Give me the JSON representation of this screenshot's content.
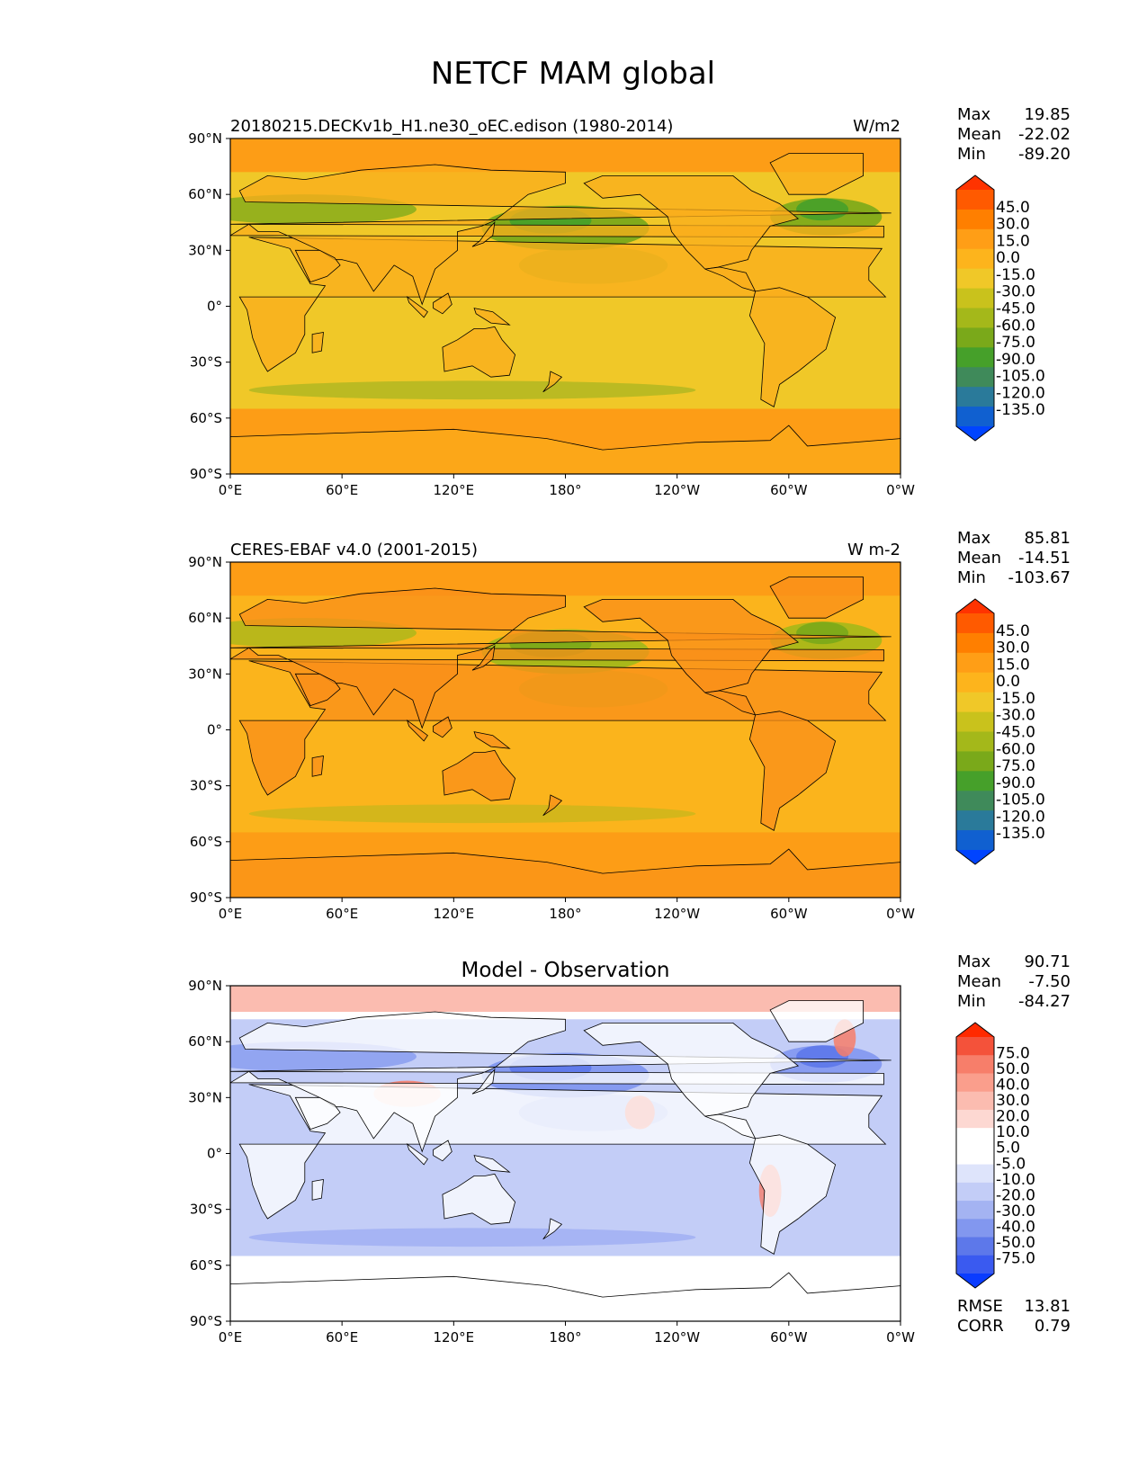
{
  "title": "NETCF MAM global",
  "lat_ticks": [
    "90°N",
    "60°N",
    "30°N",
    "0°",
    "30°S",
    "60°S",
    "90°S"
  ],
  "lon_ticks": [
    "0°E",
    "60°E",
    "120°E",
    "180°",
    "120°W",
    "60°W",
    "0°W"
  ],
  "panels": [
    {
      "left_title": "20180215.DECKv1b_H1.ne30_oEC.edison (1980-2014)",
      "center_title": "",
      "units": "W/m2",
      "stats": [
        {
          "label": "Max",
          "value": "19.85"
        },
        {
          "label": "Mean",
          "value": "-22.02"
        },
        {
          "label": "Min",
          "value": "-89.20"
        }
      ],
      "colorbar": {
        "levels": [
          "45.0",
          "30.0",
          "15.0",
          "0.0",
          "-15.0",
          "-30.0",
          "-45.0",
          "-60.0",
          "-75.0",
          "-90.0",
          "-105.0",
          "-120.0",
          "-135.0"
        ],
        "colors": [
          "#ff3300",
          "#ff5a00",
          "#ff7f00",
          "#ff9e16",
          "#fdb41c",
          "#f0c828",
          "#c9c21c",
          "#a4b81a",
          "#7aa91a",
          "#46a02a",
          "#3f8a5a",
          "#2a7a9a",
          "#1060d0",
          "#0044ff"
        ]
      },
      "field": {
        "base": "#f0c828",
        "polar": "#fd9d16",
        "land": "#fbae1c",
        "wet": "#7aa91a",
        "wet_strong": "#46a02a"
      }
    },
    {
      "left_title": "CERES-EBAF v4.0 (2001-2015)",
      "center_title": "",
      "units": "W m-2",
      "stats": [
        {
          "label": "Max",
          "value": "85.81"
        },
        {
          "label": "Mean",
          "value": "-14.51"
        },
        {
          "label": "Min",
          "value": "-103.67"
        }
      ],
      "colorbar": {
        "levels": [
          "45.0",
          "30.0",
          "15.0",
          "0.0",
          "-15.0",
          "-30.0",
          "-45.0",
          "-60.0",
          "-75.0",
          "-90.0",
          "-105.0",
          "-120.0",
          "-135.0"
        ],
        "colors": [
          "#ff3300",
          "#ff5a00",
          "#ff7f00",
          "#ff9e16",
          "#fdb41c",
          "#f0c828",
          "#c9c21c",
          "#a4b81a",
          "#7aa91a",
          "#46a02a",
          "#3f8a5a",
          "#2a7a9a",
          "#1060d0",
          "#0044ff"
        ]
      },
      "field": {
        "base": "#fbb41c",
        "polar": "#fd9d16",
        "land": "#f98f1a",
        "wet": "#a4b81a",
        "wet_strong": "#7aa91a"
      }
    },
    {
      "left_title": "",
      "center_title": "Model - Observation",
      "units": "",
      "stats": [
        {
          "label": "Max",
          "value": "90.71"
        },
        {
          "label": "Mean",
          "value": "-7.50"
        },
        {
          "label": "Min",
          "value": "-84.27"
        }
      ],
      "colorbar": {
        "levels": [
          "75.0",
          "50.0",
          "40.0",
          "30.0",
          "20.0",
          "10.0",
          "5.0",
          "-5.0",
          "-10.0",
          "-20.0",
          "-30.0",
          "-40.0",
          "-50.0",
          "-75.0"
        ],
        "colors": [
          "#ff2a00",
          "#f4523a",
          "#f77e6a",
          "#fa9e8c",
          "#fbbcb0",
          "#fdd8d2",
          "#ffffff",
          "#ffffff",
          "#dee4fb",
          "#c3cdf7",
          "#a4b3f2",
          "#8297ef",
          "#5d78ea",
          "#3a5af0",
          "#0a3cff"
        ]
      },
      "field": {
        "base": "#c3cdf7",
        "polar": "#ffffff",
        "land": "#ffffff",
        "wet": "#8297ef",
        "wet_strong": "#5d78ea",
        "warm": "#f77e6a"
      },
      "extra_stats": [
        {
          "label": "RMSE",
          "value": "13.81"
        },
        {
          "label": "CORR",
          "value": "0.79"
        }
      ]
    }
  ]
}
